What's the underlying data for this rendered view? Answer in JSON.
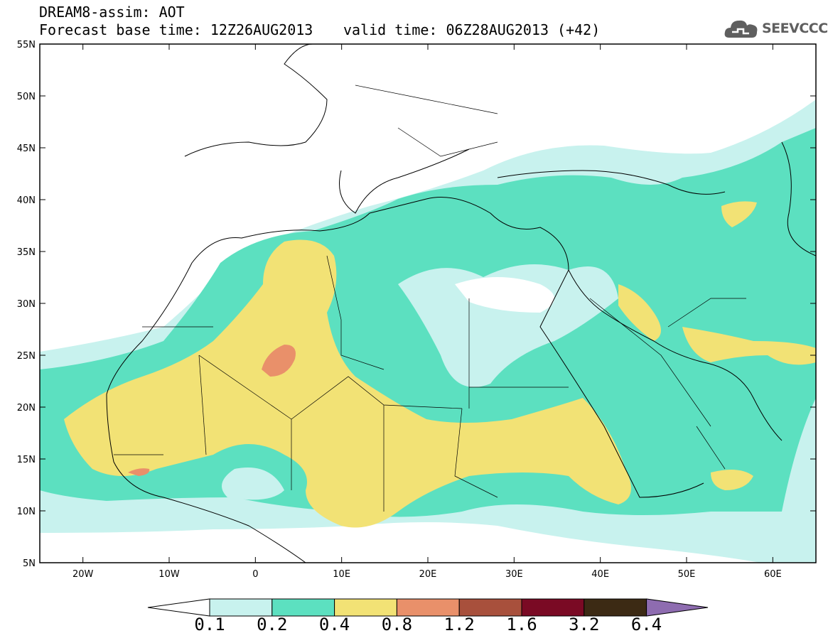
{
  "header": {
    "title": "DREAM8-assim: AOT",
    "base_time": "Forecast base time: 12Z26AUG2013",
    "valid_time": "valid time: 06Z28AUG2013 (+42)"
  },
  "logo": {
    "text": "SEEVCCC",
    "icon": "cloud-icon"
  },
  "map": {
    "lat_labels": [
      "55N",
      "50N",
      "45N",
      "40N",
      "35N",
      "30N",
      "25N",
      "20N",
      "15N",
      "10N",
      "5N"
    ],
    "lon_labels": [
      "20W",
      "10W",
      "0",
      "10E",
      "20E",
      "30E",
      "40E",
      "50E",
      "60E"
    ],
    "extent": {
      "lon": [
        -25,
        65
      ],
      "lat": [
        5,
        55
      ]
    }
  },
  "legend": {
    "levels": [
      "0.1",
      "0.2",
      "0.4",
      "0.8",
      "1.2",
      "1.6",
      "3.2",
      "6.4"
    ],
    "colors": [
      "#c8f2ee",
      "#5ce0c0",
      "#f2e275",
      "#e9906a",
      "#a8503c",
      "#7a0a24",
      "#3c2a14",
      "#8e6cb0"
    ],
    "under_color": "#ffffff"
  },
  "colors": {
    "aot_01_02": "#c8f2ee",
    "aot_02_04": "#5ce0c0",
    "aot_04_08": "#f2e275",
    "aot_08_12": "#e9906a"
  }
}
